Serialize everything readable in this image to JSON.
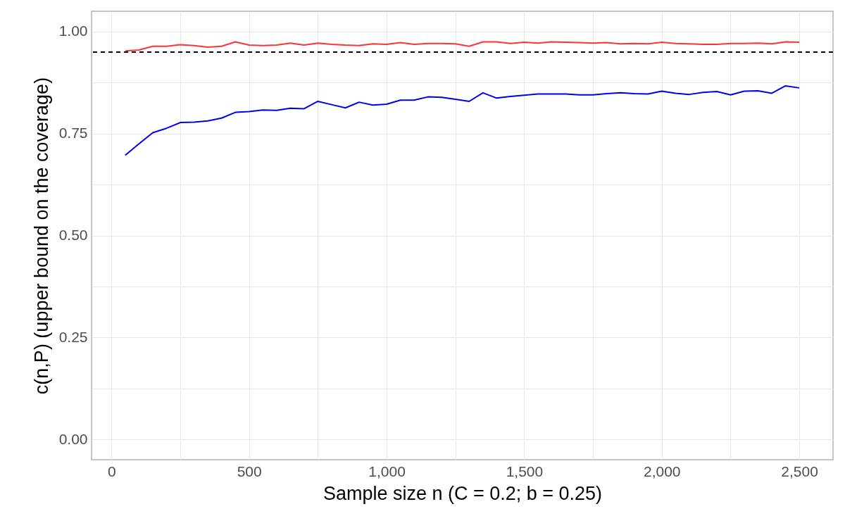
{
  "chart_data": {
    "type": "line",
    "xlabel": "Sample size n (C = 0.2; b = 0.25)",
    "ylabel": "c(n,P) (upper bound on the coverage)",
    "x": [
      50,
      100,
      150,
      200,
      250,
      300,
      350,
      400,
      450,
      500,
      550,
      600,
      650,
      700,
      750,
      800,
      850,
      900,
      950,
      1000,
      1050,
      1100,
      1150,
      1200,
      1250,
      1300,
      1350,
      1400,
      1450,
      1500,
      1550,
      1600,
      1650,
      1700,
      1750,
      1800,
      1850,
      1900,
      1950,
      2000,
      2050,
      2100,
      2150,
      2200,
      2250,
      2300,
      2350,
      2400,
      2450,
      2500
    ],
    "series": [
      {
        "color": "#ff3333",
        "values": [
          0.953,
          0.955,
          0.964,
          0.964,
          0.968,
          0.966,
          0.962,
          0.964,
          0.975,
          0.967,
          0.966,
          0.967,
          0.972,
          0.967,
          0.972,
          0.969,
          0.967,
          0.966,
          0.97,
          0.969,
          0.973,
          0.969,
          0.971,
          0.971,
          0.97,
          0.964,
          0.975,
          0.975,
          0.971,
          0.974,
          0.972,
          0.975,
          0.974,
          0.973,
          0.972,
          0.973,
          0.97,
          0.971,
          0.97,
          0.974,
          0.971,
          0.97,
          0.969,
          0.969,
          0.971,
          0.971,
          0.972,
          0.97,
          0.975,
          0.974
        ]
      },
      {
        "color": "#0000ee",
        "values": [
          0.697,
          0.725,
          0.752,
          0.763,
          0.777,
          0.778,
          0.781,
          0.788,
          0.802,
          0.804,
          0.808,
          0.807,
          0.812,
          0.811,
          0.829,
          0.821,
          0.813,
          0.827,
          0.82,
          0.822,
          0.832,
          0.832,
          0.84,
          0.839,
          0.834,
          0.829,
          0.85,
          0.837,
          0.841,
          0.844,
          0.847,
          0.847,
          0.847,
          0.845,
          0.845,
          0.848,
          0.85,
          0.848,
          0.847,
          0.854,
          0.849,
          0.846,
          0.851,
          0.853,
          0.845,
          0.854,
          0.855,
          0.849,
          0.867,
          0.862
        ]
      }
    ],
    "xlim": [
      -72.5,
      2622.5
    ],
    "xticks": [
      0,
      {
        "value": 250,
        "label": null
      },
      500,
      {
        "value": 750,
        "label": null
      },
      {
        "value": 1000,
        "label": "1,000"
      },
      {
        "value": 1250,
        "label": null
      },
      {
        "value": 1500,
        "label": "1,500"
      },
      {
        "value": 1750,
        "label": null
      },
      {
        "value": 2000,
        "label": "2,000"
      },
      {
        "value": 2250,
        "label": null
      },
      {
        "value": 2500,
        "label": "2,500"
      }
    ],
    "ylim": [
      -0.05,
      1.05
    ],
    "yticks": [
      {
        "value": 0,
        "label": "0.00"
      },
      {
        "value": 0.125,
        "label": null
      },
      {
        "value": 0.25,
        "label": "0.25"
      },
      {
        "value": 0.375,
        "label": null
      },
      {
        "value": 0.5,
        "label": "0.50"
      },
      {
        "value": 0.625,
        "label": null
      },
      {
        "value": 0.75,
        "label": "0.75"
      },
      {
        "value": 0.875,
        "label": null
      },
      {
        "value": 1,
        "label": "1.00"
      }
    ],
    "ref_lines": [
      {
        "axis": "y",
        "value": 0.95,
        "color": "#000000",
        "line_style": "dashed"
      }
    ],
    "grid": true,
    "line_style": "solid",
    "marker": "none"
  }
}
